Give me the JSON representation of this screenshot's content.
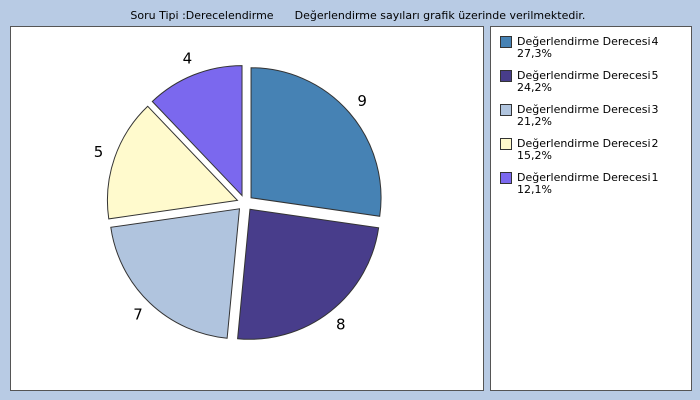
{
  "header": {
    "question_type": "Soru Tipi :Derecelendirme",
    "note": "Değerlendirme sayıları grafik üzerinde verilmektedir."
  },
  "chart_data": {
    "type": "pie",
    "legend_label": "Değerlendirme Derecesi",
    "categories": [
      "4",
      "5",
      "3",
      "2",
      "1"
    ],
    "values": [
      9,
      8,
      7,
      5,
      4
    ],
    "percent_labels": [
      "27,3%",
      "24,2%",
      "21,2%",
      "15,2%",
      "12,1%"
    ],
    "colors": [
      "#4682b4",
      "#483d8b",
      "#b0c4de",
      "#fffacd",
      "#7b68ee"
    ],
    "legend": "right"
  }
}
